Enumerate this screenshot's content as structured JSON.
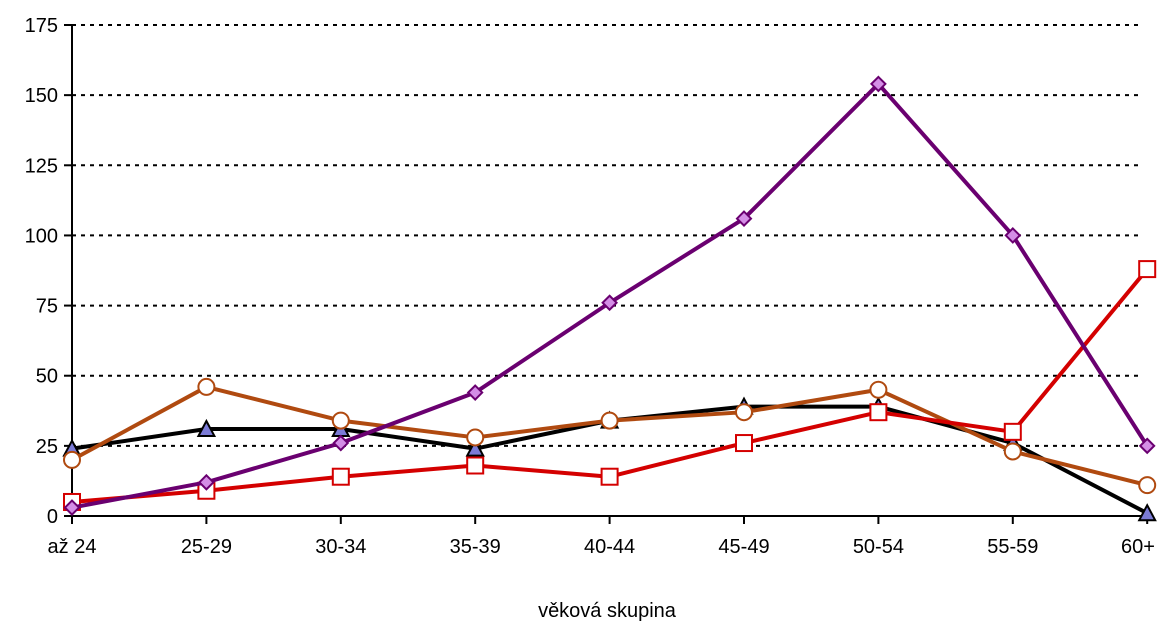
{
  "chart_data": {
    "type": "line",
    "title": "",
    "xlabel": "věková skupina",
    "ylabel": "",
    "categories": [
      "až 24",
      "25-29",
      "30-34",
      "35-39",
      "40-44",
      "45-49",
      "50-54",
      "55-59",
      "60+"
    ],
    "yticks": [
      "0",
      "25",
      "50",
      "75",
      "100",
      "125",
      "150",
      "175"
    ],
    "ylim": [
      0,
      175
    ],
    "grid": "horizontal dotted",
    "legend": "none",
    "series": [
      {
        "values": [
          24,
          31,
          31,
          24,
          34,
          39,
          39,
          26,
          1
        ],
        "color": "#000000",
        "marker": "triangle",
        "marker_fill": "#7b7bd6"
      },
      {
        "values": [
          20,
          46,
          34,
          28,
          34,
          37,
          45,
          23,
          11
        ],
        "color": "#b04a10",
        "marker": "circle",
        "marker_fill": "#ffffff"
      },
      {
        "values": [
          5,
          9,
          14,
          18,
          14,
          26,
          37,
          30,
          88
        ],
        "color": "#d40000",
        "marker": "square",
        "marker_fill": "#ffffff"
      },
      {
        "values": [
          3,
          12,
          26,
          44,
          76,
          106,
          154,
          100,
          25
        ],
        "color": "#6a0070",
        "marker": "diamond",
        "marker_fill": "#d48ee6"
      }
    ]
  }
}
